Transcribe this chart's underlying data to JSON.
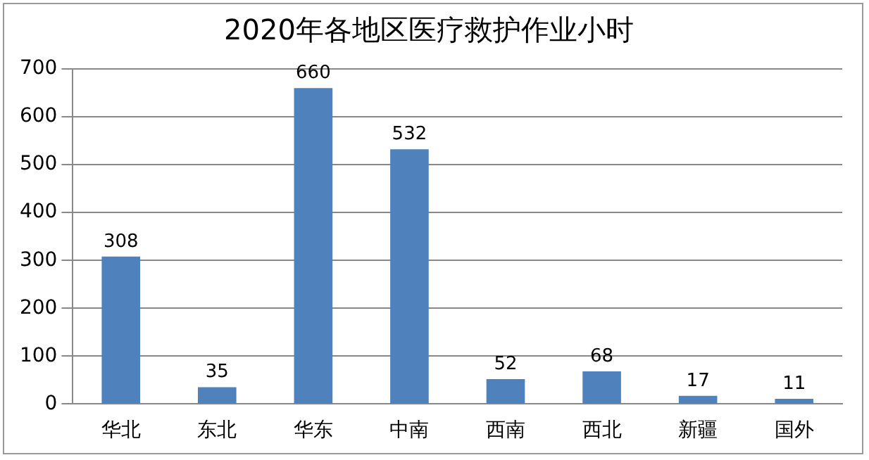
{
  "chart_data": {
    "type": "bar",
    "title": "2020年各地区医疗救护作业小时",
    "categories": [
      "华北",
      "东北",
      "华东",
      "中南",
      "西南",
      "西北",
      "新疆",
      "国外"
    ],
    "values": [
      308,
      35,
      660,
      532,
      52,
      68,
      17,
      11
    ],
    "color": "#4f81bd",
    "ylim": [
      0,
      700
    ],
    "yticks": [
      0,
      100,
      200,
      300,
      400,
      500,
      600,
      700
    ],
    "grid": "y",
    "data_labels": true,
    "legend": false
  }
}
